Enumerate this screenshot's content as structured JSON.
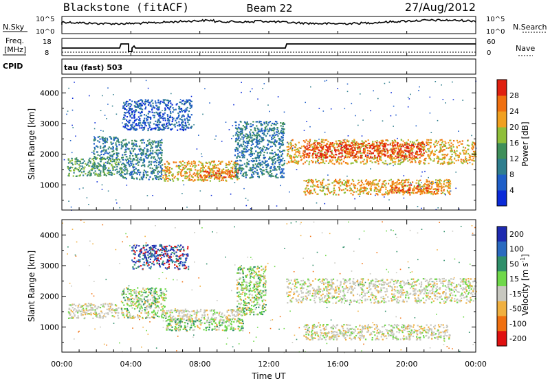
{
  "header": {
    "station": "Blackstone (fitACF)",
    "beam": "Beam 22",
    "date": "27/Aug/2012"
  },
  "strips": {
    "nsky_label": "N.Sky",
    "nsearch_label": "N.Search",
    "freq_label_line1": "Freq.",
    "freq_label_line2": "[MHz]",
    "nave_label": "Nave",
    "cpid_label": "CPID",
    "cpid_value": "tau (fast) 503",
    "noise_ticks_left": [
      "10^5",
      "10^0"
    ],
    "noise_ticks_right": [
      "10^5",
      "10^0"
    ],
    "freq_ticks": [
      "18",
      "8"
    ],
    "nave_ticks": [
      "60",
      "0"
    ]
  },
  "chart_data": [
    {
      "type": "heatmap",
      "name": "Power",
      "ylabel": "Slant Range [km]",
      "ylim": [
        180,
        4500
      ],
      "yticks": [
        1000,
        2000,
        3000,
        4000
      ],
      "xlim": [
        0,
        24
      ],
      "colorbar": {
        "label": "Power [dB]",
        "tick_labels": [
          "4",
          "8",
          "12",
          "16",
          "20",
          "24",
          "28"
        ],
        "colors": [
          "#0a2ad8",
          "#1f5fc8",
          "#2f7e8e",
          "#3f8f5a",
          "#8fbf3a",
          "#f0a020",
          "#f07010",
          "#e02010"
        ]
      },
      "echo_regions": [
        {
          "t0": 0.3,
          "t1": 3.5,
          "r0": 1300,
          "r1": 1900,
          "level": 3
        },
        {
          "t0": 1.8,
          "t1": 3.3,
          "r0": 1850,
          "r1": 2600,
          "level": 2
        },
        {
          "t0": 3.4,
          "t1": 5.8,
          "r0": 1200,
          "r1": 2500,
          "level": 2
        },
        {
          "t0": 3.5,
          "t1": 7.5,
          "r0": 2800,
          "r1": 3800,
          "level": 1
        },
        {
          "t0": 5.8,
          "t1": 10.3,
          "r0": 1150,
          "r1": 1800,
          "level": 5
        },
        {
          "t0": 7.8,
          "t1": 10.2,
          "r0": 1250,
          "r1": 1500,
          "level": 6
        },
        {
          "t0": 10.0,
          "t1": 12.9,
          "r0": 1250,
          "r1": 3100,
          "level": 2
        },
        {
          "t0": 13.0,
          "t1": 24.0,
          "r0": 1700,
          "r1": 2500,
          "level": 5
        },
        {
          "t0": 14.0,
          "t1": 21.0,
          "r0": 1900,
          "r1": 2400,
          "level": 7
        },
        {
          "t0": 14.0,
          "t1": 22.5,
          "r0": 700,
          "r1": 1200,
          "level": 5
        },
        {
          "t0": 19.0,
          "t1": 22.0,
          "r0": 750,
          "r1": 1050,
          "level": 6
        }
      ]
    },
    {
      "type": "heatmap",
      "name": "Velocity",
      "ylabel": "Slant Range [km]",
      "xlabel": "Time UT",
      "ylim": [
        180,
        4500
      ],
      "yticks": [
        1000,
        2000,
        3000,
        4000
      ],
      "xlim": [
        0,
        24
      ],
      "xtick_labels": [
        "00:00",
        "04:00",
        "08:00",
        "12:00",
        "16:00",
        "20:00",
        "00:00"
      ],
      "colorbar": {
        "label": "Velocity [m s",
        "label_sup": "-1",
        "label_end": "]",
        "tick_labels": [
          "200",
          "100",
          "50",
          "15",
          "-15",
          "-50",
          "-100",
          "-200"
        ],
        "colors": [
          "#1e2ab0",
          "#2a6ac0",
          "#2f8f6a",
          "#6fd84a",
          "#c8c8c0",
          "#f0b040",
          "#f07010",
          "#e01010"
        ]
      },
      "echo_regions": [
        {
          "t0": 0.3,
          "t1": 3.3,
          "r0": 1300,
          "r1": 1800,
          "vel": "ground"
        },
        {
          "t0": 3.4,
          "t1": 6.0,
          "r0": 1300,
          "r1": 2300,
          "vel": "green"
        },
        {
          "t0": 5.8,
          "t1": 10.3,
          "r0": 1200,
          "r1": 1600,
          "vel": "ground"
        },
        {
          "t0": 6.0,
          "t1": 10.5,
          "r0": 900,
          "r1": 1300,
          "vel": "green"
        },
        {
          "t0": 4.0,
          "t1": 7.3,
          "r0": 2900,
          "r1": 3700,
          "vel": "blue"
        },
        {
          "t0": 10.1,
          "t1": 11.8,
          "r0": 1400,
          "r1": 3000,
          "vel": "green"
        },
        {
          "t0": 13.0,
          "t1": 24.0,
          "r0": 1800,
          "r1": 2600,
          "vel": "ground"
        },
        {
          "t0": 14.0,
          "t1": 22.5,
          "r0": 600,
          "r1": 1100,
          "vel": "ground"
        }
      ]
    }
  ]
}
